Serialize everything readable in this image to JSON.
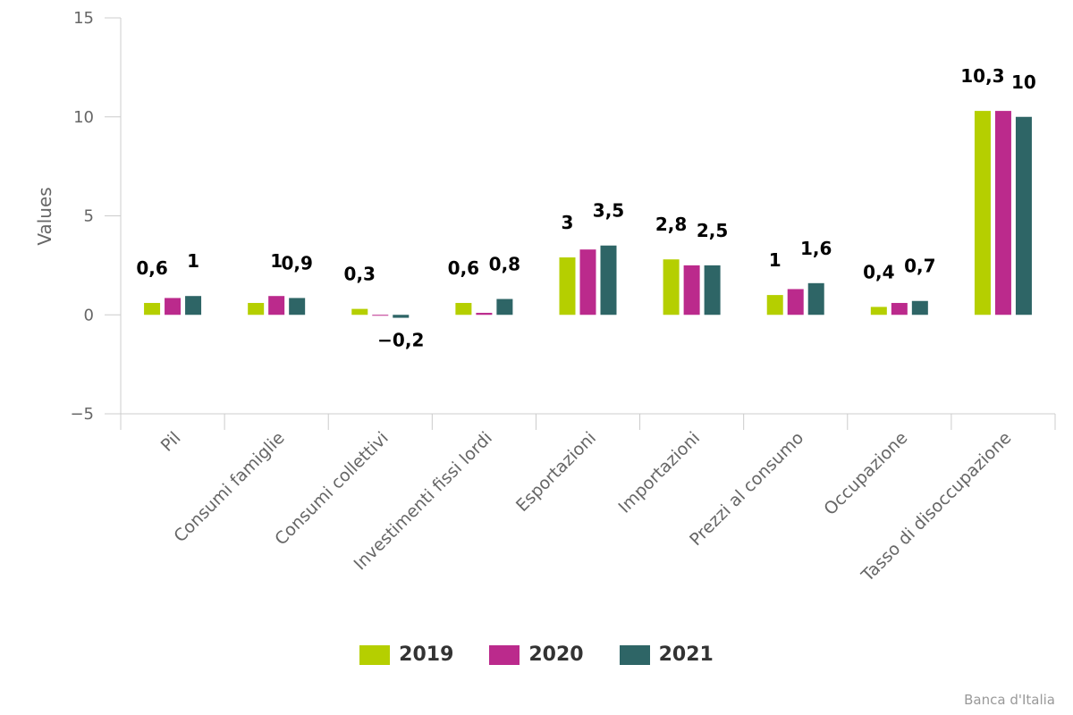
{
  "chart_data": {
    "type": "bar",
    "ylabel": "Values",
    "ylim": [
      -5,
      15
    ],
    "yticks": [
      -5,
      0,
      5,
      10,
      15
    ],
    "ytick_labels": [
      "−5",
      "0",
      "5",
      "10",
      "15"
    ],
    "categories": [
      "Pil",
      "Consumi famiglie",
      "Consumi collettivi",
      "Investimenti fissi lordi",
      "Esportazioni",
      "Importazioni",
      "Prezzi al consumo",
      "Occupazione",
      "Tasso di disoccupazione"
    ],
    "series": [
      {
        "name": "2019",
        "color": "#b5cf00",
        "values": [
          0.6,
          0.6,
          0.3,
          0.6,
          2.9,
          2.8,
          1.0,
          0.4,
          10.3
        ]
      },
      {
        "name": "2020",
        "color": "#bb2a8c",
        "values": [
          0.85,
          0.95,
          0.0,
          0.1,
          3.3,
          2.5,
          1.3,
          0.6,
          10.3
        ]
      },
      {
        "name": "2021",
        "color": "#2e6566",
        "values": [
          0.95,
          0.85,
          -0.15,
          0.8,
          3.5,
          2.5,
          1.6,
          0.7,
          10.0
        ]
      }
    ],
    "data_labels": [
      {
        "category": 0,
        "series": 0,
        "text": "0,6"
      },
      {
        "category": 0,
        "series": 2,
        "text": "1"
      },
      {
        "category": 1,
        "series": 1,
        "text": "1"
      },
      {
        "category": 1,
        "series": 2,
        "text": "0,9"
      },
      {
        "category": 2,
        "series": 0,
        "text": "0,3"
      },
      {
        "category": 2,
        "series": 2,
        "text": "−0,2"
      },
      {
        "category": 3,
        "series": 0,
        "text": "0,6"
      },
      {
        "category": 3,
        "series": 2,
        "text": "0,8"
      },
      {
        "category": 4,
        "series": 0,
        "text": "3"
      },
      {
        "category": 4,
        "series": 2,
        "text": "3,5"
      },
      {
        "category": 5,
        "series": 0,
        "text": "2,8"
      },
      {
        "category": 5,
        "series": 2,
        "text": "2,5"
      },
      {
        "category": 6,
        "series": 0,
        "text": "1"
      },
      {
        "category": 6,
        "series": 2,
        "text": "1,6"
      },
      {
        "category": 7,
        "series": 0,
        "text": "0,4"
      },
      {
        "category": 7,
        "series": 2,
        "text": "0,7"
      },
      {
        "category": 8,
        "series": 0,
        "text": "10,3"
      },
      {
        "category": 8,
        "series": 2,
        "text": "10"
      }
    ],
    "legend_position": "bottom",
    "grid": false
  },
  "credits": "Banca d'Italia"
}
